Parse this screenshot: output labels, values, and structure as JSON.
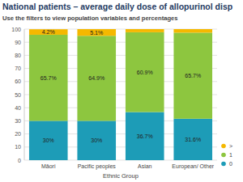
{
  "chart_data": {
    "type": "bar",
    "title": "National patients – average daily dose of allopurinol disp",
    "subtitle": "Use the filters to view population variables and percentages",
    "x_label": "Ethnic Group",
    "categories": [
      "Māori",
      "Pacific peoples",
      "Asian",
      "European/ Other"
    ],
    "series": [
      {
        "name": "0",
        "color": "#1d9cb7",
        "values": [
          30,
          30,
          36.7,
          31.6
        ],
        "value_labels": [
          "30%",
          "30%",
          "36.7%",
          "31.6%"
        ]
      },
      {
        "name": "1",
        "color": "#8dc63f",
        "values": [
          65.7,
          64.9,
          60.9,
          65.7
        ],
        "value_labels": [
          "65.7%",
          "64.9%",
          "60.9%",
          "65.7%"
        ]
      },
      {
        "name": ">",
        "color": "#f5b800",
        "values": [
          4.2,
          5.1,
          2.4,
          2.7
        ],
        "value_labels": [
          "4.2%",
          "5.1%",
          null,
          null
        ]
      }
    ],
    "stacked": true,
    "data_labels": true,
    "ylim": [
      0,
      100
    ],
    "yticks": [
      0,
      10,
      20,
      30,
      40,
      50,
      60,
      70,
      80,
      90,
      100
    ],
    "grid": true,
    "legend": "right"
  }
}
